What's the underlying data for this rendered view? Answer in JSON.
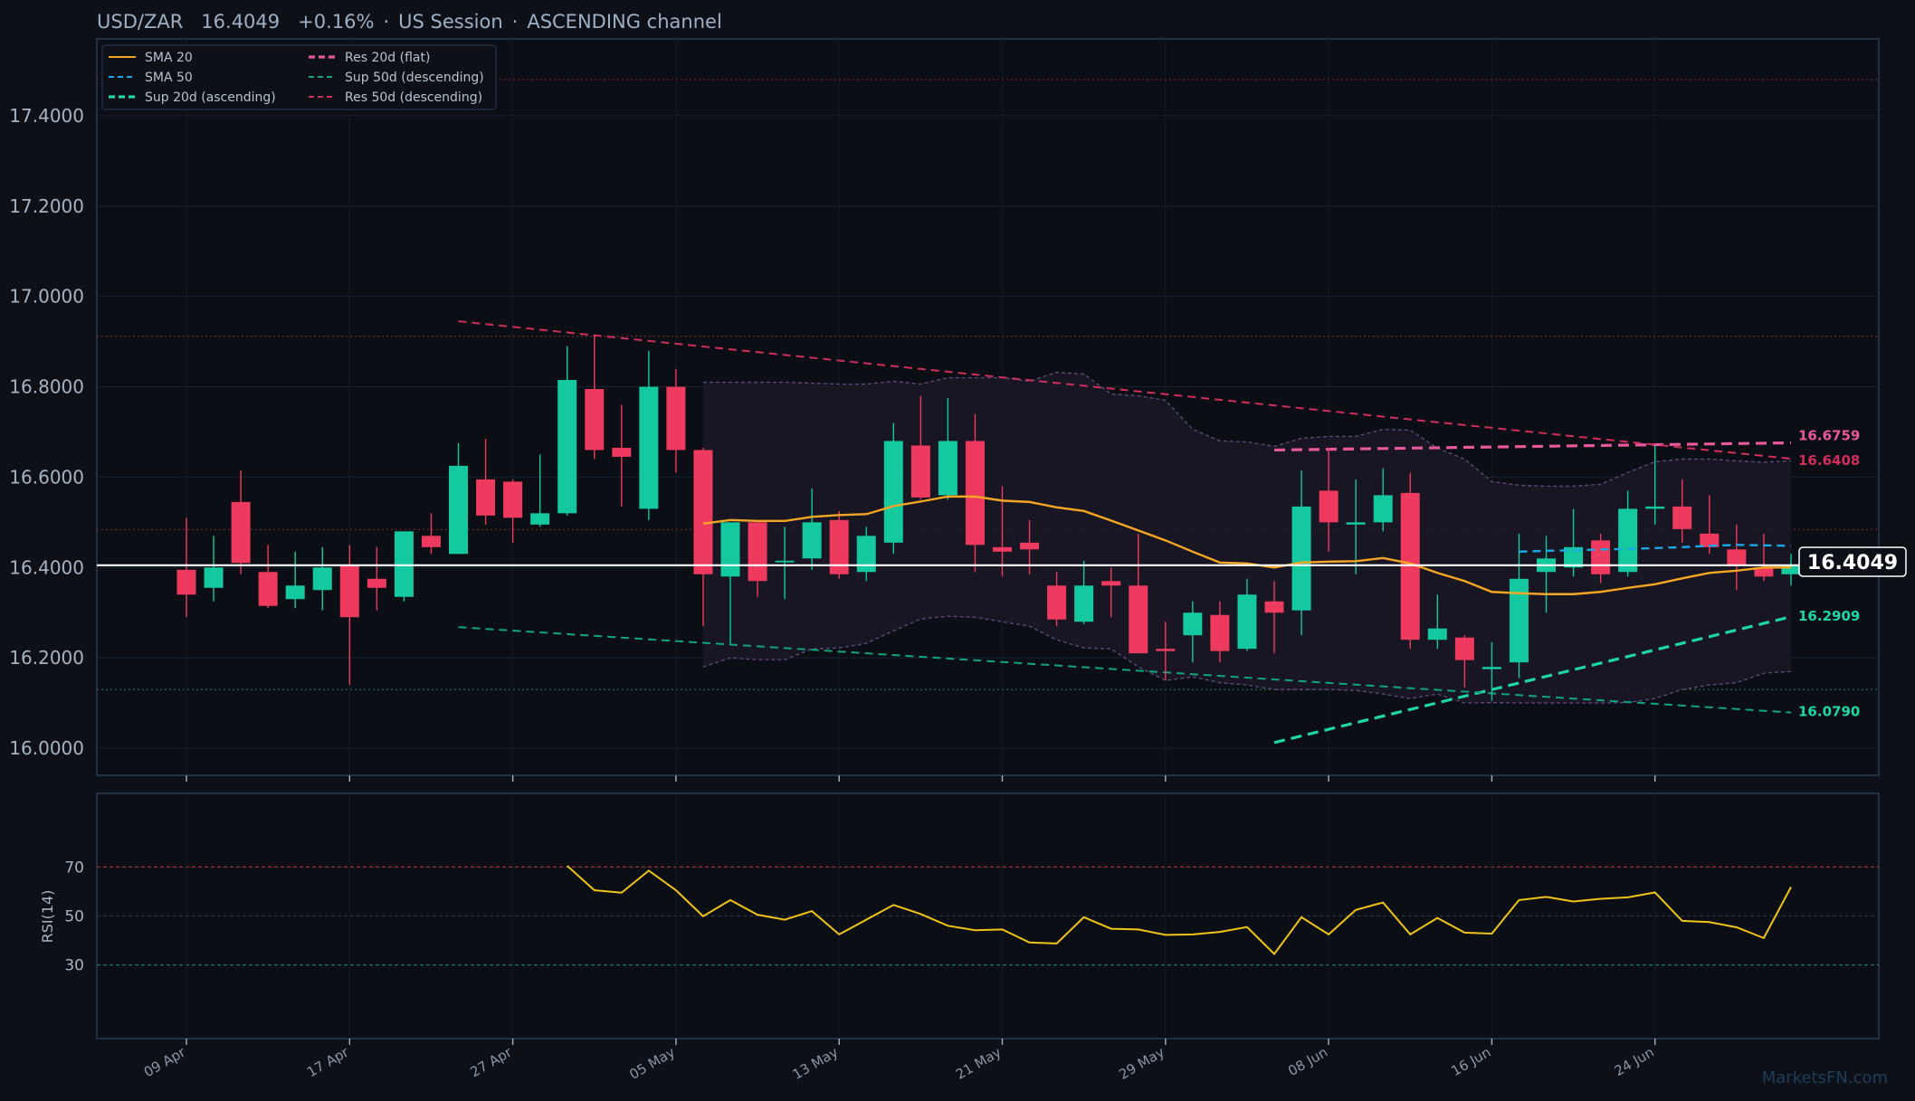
{
  "header": {
    "symbol": "USD/ZAR",
    "price": "16.4049",
    "change": "+0.16%",
    "session": "US Session",
    "channel": "ASCENDING channel"
  },
  "legend": [
    {
      "label": "SMA 20",
      "color": "#f5a623",
      "style": "solid"
    },
    {
      "label": "SMA 50",
      "color": "#1ea7e8",
      "style": "dashed"
    },
    {
      "label": "Sup 20d (ascending)",
      "color": "#1fd6a4",
      "style": "dashed-bold"
    },
    {
      "label": "Res 20d (flat)",
      "color": "#e8589a",
      "style": "dashed-bold"
    },
    {
      "label": "Sup 50d (descending)",
      "color": "#14a37f",
      "style": "dashed"
    },
    {
      "label": "Res 50d (descending)",
      "color": "#d02e5c",
      "style": "dashed"
    }
  ],
  "price_axis": {
    "ticks": [
      "16.0000",
      "16.2000",
      "16.4000",
      "16.6000",
      "16.8000",
      "17.0000",
      "17.2000",
      "17.4000"
    ],
    "ylim": [
      15.94,
      17.57
    ]
  },
  "rsi_axis": {
    "label": "RSI(14)",
    "ticks": [
      "30",
      "50",
      "70"
    ],
    "ylim": [
      0,
      100
    ]
  },
  "x_labels": [
    "09 Apr",
    "17 Apr",
    "27 Apr",
    "05 May",
    "13 May",
    "21 May",
    "29 May",
    "08 Jun",
    "16 Jun",
    "24 Jun"
  ],
  "price_tag": "16.4049",
  "level_tags": [
    {
      "text": "16.6759",
      "color": "#e8589a"
    },
    {
      "text": "16.6408",
      "color": "#d02e5c"
    },
    {
      "text": "16.2909",
      "color": "#1fd6a4"
    },
    {
      "text": "16.0790",
      "color": "#1fd6a4"
    }
  ],
  "watermark": "MarketsFN.com",
  "colors": {
    "up": "#14c8a0",
    "down": "#ee3a5e",
    "bg": "#0d1117",
    "sma20": "#f5a623",
    "rsi": "#f0c419"
  },
  "chart_data": {
    "type": "candlestick",
    "title": "USD/ZAR 16.4049 +0.16% · US Session · ASCENDING channel",
    "candles": [
      {
        "i": 0,
        "o": 16.395,
        "h": 16.51,
        "l": 16.29,
        "c": 16.34
      },
      {
        "i": 1,
        "o": 16.355,
        "h": 16.47,
        "l": 16.325,
        "c": 16.4
      },
      {
        "i": 2,
        "o": 16.545,
        "h": 16.615,
        "l": 16.385,
        "c": 16.41
      },
      {
        "i": 3,
        "o": 16.39,
        "h": 16.45,
        "l": 16.31,
        "c": 16.315
      },
      {
        "i": 4,
        "o": 16.33,
        "h": 16.435,
        "l": 16.31,
        "c": 16.36
      },
      {
        "i": 5,
        "o": 16.35,
        "h": 16.445,
        "l": 16.305,
        "c": 16.4
      },
      {
        "i": 6,
        "o": 16.405,
        "h": 16.45,
        "l": 16.14,
        "c": 16.29
      },
      {
        "i": 7,
        "o": 16.375,
        "h": 16.445,
        "l": 16.305,
        "c": 16.355
      },
      {
        "i": 8,
        "o": 16.335,
        "h": 16.48,
        "l": 16.325,
        "c": 16.48
      },
      {
        "i": 9,
        "o": 16.47,
        "h": 16.52,
        "l": 16.43,
        "c": 16.445
      },
      {
        "i": 10,
        "o": 16.43,
        "h": 16.675,
        "l": 16.43,
        "c": 16.625
      },
      {
        "i": 11,
        "o": 16.595,
        "h": 16.685,
        "l": 16.495,
        "c": 16.515
      },
      {
        "i": 12,
        "o": 16.59,
        "h": 16.595,
        "l": 16.455,
        "c": 16.51
      },
      {
        "i": 13,
        "o": 16.495,
        "h": 16.65,
        "l": 16.49,
        "c": 16.52
      },
      {
        "i": 14,
        "o": 16.52,
        "h": 16.89,
        "l": 16.515,
        "c": 16.815
      },
      {
        "i": 15,
        "o": 16.795,
        "h": 16.915,
        "l": 16.64,
        "c": 16.66
      },
      {
        "i": 16,
        "o": 16.665,
        "h": 16.76,
        "l": 16.535,
        "c": 16.645
      },
      {
        "i": 17,
        "o": 16.53,
        "h": 16.88,
        "l": 16.505,
        "c": 16.8
      },
      {
        "i": 18,
        "o": 16.8,
        "h": 16.84,
        "l": 16.61,
        "c": 16.66
      },
      {
        "i": 19,
        "o": 16.66,
        "h": 16.665,
        "l": 16.27,
        "c": 16.385
      },
      {
        "i": 20,
        "o": 16.38,
        "h": 16.5,
        "l": 16.23,
        "c": 16.5
      },
      {
        "i": 21,
        "o": 16.5,
        "h": 16.505,
        "l": 16.335,
        "c": 16.37
      },
      {
        "i": 22,
        "o": 16.415,
        "h": 16.49,
        "l": 16.33,
        "c": 16.415
      },
      {
        "i": 23,
        "o": 16.42,
        "h": 16.575,
        "l": 16.395,
        "c": 16.5
      },
      {
        "i": 24,
        "o": 16.505,
        "h": 16.525,
        "l": 16.375,
        "c": 16.385
      },
      {
        "i": 25,
        "o": 16.39,
        "h": 16.49,
        "l": 16.37,
        "c": 16.47
      },
      {
        "i": 26,
        "o": 16.455,
        "h": 16.72,
        "l": 16.43,
        "c": 16.68
      },
      {
        "i": 27,
        "o": 16.67,
        "h": 16.78,
        "l": 16.55,
        "c": 16.555
      },
      {
        "i": 28,
        "o": 16.56,
        "h": 16.775,
        "l": 16.55,
        "c": 16.68
      },
      {
        "i": 29,
        "o": 16.68,
        "h": 16.74,
        "l": 16.39,
        "c": 16.45
      },
      {
        "i": 30,
        "o": 16.445,
        "h": 16.58,
        "l": 16.38,
        "c": 16.435
      },
      {
        "i": 31,
        "o": 16.455,
        "h": 16.505,
        "l": 16.385,
        "c": 16.44
      },
      {
        "i": 32,
        "o": 16.36,
        "h": 16.39,
        "l": 16.27,
        "c": 16.285
      },
      {
        "i": 33,
        "o": 16.28,
        "h": 16.415,
        "l": 16.275,
        "c": 16.36
      },
      {
        "i": 34,
        "o": 16.37,
        "h": 16.4,
        "l": 16.29,
        "c": 16.36
      },
      {
        "i": 35,
        "o": 16.36,
        "h": 16.475,
        "l": 16.21,
        "c": 16.21
      },
      {
        "i": 36,
        "o": 16.22,
        "h": 16.28,
        "l": 16.15,
        "c": 16.215
      },
      {
        "i": 37,
        "o": 16.25,
        "h": 16.325,
        "l": 16.19,
        "c": 16.3
      },
      {
        "i": 38,
        "o": 16.295,
        "h": 16.325,
        "l": 16.19,
        "c": 16.215
      },
      {
        "i": 39,
        "o": 16.22,
        "h": 16.375,
        "l": 16.215,
        "c": 16.34
      },
      {
        "i": 40,
        "o": 16.325,
        "h": 16.37,
        "l": 16.21,
        "c": 16.3
      },
      {
        "i": 41,
        "o": 16.305,
        "h": 16.615,
        "l": 16.25,
        "c": 16.535
      },
      {
        "i": 42,
        "o": 16.57,
        "h": 16.665,
        "l": 16.435,
        "c": 16.5
      },
      {
        "i": 43,
        "o": 16.495,
        "h": 16.595,
        "l": 16.385,
        "c": 16.5
      },
      {
        "i": 44,
        "o": 16.5,
        "h": 16.62,
        "l": 16.48,
        "c": 16.56
      },
      {
        "i": 45,
        "o": 16.565,
        "h": 16.61,
        "l": 16.22,
        "c": 16.24
      },
      {
        "i": 46,
        "o": 16.24,
        "h": 16.34,
        "l": 16.22,
        "c": 16.265
      },
      {
        "i": 47,
        "o": 16.245,
        "h": 16.25,
        "l": 16.135,
        "c": 16.195
      },
      {
        "i": 48,
        "o": 16.175,
        "h": 16.235,
        "l": 16.105,
        "c": 16.18
      },
      {
        "i": 49,
        "o": 16.19,
        "h": 16.475,
        "l": 16.155,
        "c": 16.375
      },
      {
        "i": 50,
        "o": 16.39,
        "h": 16.47,
        "l": 16.3,
        "c": 16.42
      },
      {
        "i": 51,
        "o": 16.4,
        "h": 16.53,
        "l": 16.38,
        "c": 16.445
      },
      {
        "i": 52,
        "o": 16.46,
        "h": 16.475,
        "l": 16.365,
        "c": 16.385
      },
      {
        "i": 53,
        "o": 16.39,
        "h": 16.57,
        "l": 16.38,
        "c": 16.53
      },
      {
        "i": 54,
        "o": 16.53,
        "h": 16.67,
        "l": 16.495,
        "c": 16.535
      },
      {
        "i": 55,
        "o": 16.535,
        "h": 16.595,
        "l": 16.455,
        "c": 16.485
      },
      {
        "i": 56,
        "o": 16.475,
        "h": 16.56,
        "l": 16.43,
        "c": 16.445
      },
      {
        "i": 57,
        "o": 16.44,
        "h": 16.495,
        "l": 16.35,
        "c": 16.405
      },
      {
        "i": 58,
        "o": 16.4,
        "h": 16.475,
        "l": 16.37,
        "c": 16.38
      },
      {
        "i": 59,
        "o": 16.385,
        "h": 16.43,
        "l": 16.36,
        "c": 16.4049
      }
    ],
    "sma20": {
      "start": 19,
      "values": [
        16.497,
        16.505,
        16.503,
        16.503,
        16.512,
        16.516,
        16.518,
        16.536,
        16.546,
        16.557,
        16.557,
        16.548,
        16.545,
        16.533,
        16.525,
        16.504,
        16.482,
        16.46,
        16.435,
        16.411,
        16.409,
        16.4,
        16.411,
        16.413,
        16.414,
        16.421,
        16.409,
        16.388,
        16.37,
        16.346,
        16.343,
        16.341,
        16.341,
        16.346,
        16.355,
        16.363,
        16.376,
        16.388,
        16.393,
        16.4,
        16.4
      ]
    },
    "sma50": {
      "start": 49,
      "values": [
        16.435,
        16.437,
        16.438,
        16.44,
        16.441,
        16.443,
        16.445,
        16.448,
        16.45,
        16.449,
        16.448
      ]
    },
    "bands": {
      "start": 19,
      "upper": [
        16.81,
        16.81,
        16.81,
        16.81,
        16.808,
        16.806,
        16.806,
        16.812,
        16.806,
        16.82,
        16.82,
        16.82,
        16.812,
        16.832,
        16.828,
        16.784,
        16.78,
        16.77,
        16.706,
        16.68,
        16.678,
        16.668,
        16.686,
        16.69,
        16.69,
        16.706,
        16.704,
        16.664,
        16.64,
        16.59,
        16.582,
        16.58,
        16.58,
        16.584,
        16.61,
        16.634,
        16.64,
        16.64,
        16.636,
        16.633,
        16.636
      ],
      "lower": [
        16.18,
        16.2,
        16.196,
        16.196,
        16.22,
        16.222,
        16.232,
        16.26,
        16.286,
        16.292,
        16.29,
        16.28,
        16.27,
        16.24,
        16.222,
        16.22,
        16.18,
        16.15,
        16.158,
        16.145,
        16.14,
        16.13,
        16.13,
        16.13,
        16.128,
        16.12,
        16.11,
        16.12,
        16.1,
        16.101,
        16.1,
        16.1,
        16.1,
        16.1,
        16.101,
        16.11,
        16.13,
        16.14,
        16.145,
        16.166,
        16.17
      ]
    },
    "lines": [
      {
        "name": "Sup 20d (ascending)",
        "from": [
          40,
          16.0125
        ],
        "to": [
          59,
          16.2909
        ]
      },
      {
        "name": "Res 20d (flat)",
        "from": [
          40,
          16.66
        ],
        "to": [
          59,
          16.6759
        ]
      },
      {
        "name": "Sup 50d (descending)",
        "from": [
          10,
          16.268
        ],
        "to": [
          59,
          16.079
        ]
      },
      {
        "name": "Res 50d (descending)",
        "from": [
          10,
          16.945
        ],
        "to": [
          59,
          16.6408
        ]
      }
    ],
    "sma50_start_index": 49,
    "ref_levels": [
      17.48,
      16.912,
      16.484,
      16.13
    ],
    "current_price": 16.4049,
    "rsi": {
      "start": 14,
      "values": [
        70.5,
        60.5,
        59.5,
        68.5,
        60.5,
        49.9,
        56.5,
        50.5,
        48.5,
        52.0,
        42.5,
        48.5,
        54.5,
        50.8,
        46.0,
        44.2,
        44.5,
        39.2,
        38.8,
        49.5,
        44.8,
        44.5,
        42.3,
        42.5,
        43.5,
        45.5,
        34.5,
        49.5,
        42.5,
        52.5,
        55.5,
        42.5,
        49.2,
        43.2,
        42.8,
        56.5,
        57.8,
        55.9,
        57.0,
        57.6,
        59.6,
        48.0,
        47.5,
        45.4,
        41.0,
        61.8
      ]
    },
    "rsi_levels": [
      70,
      50,
      30
    ],
    "x_tick_indices": [
      0,
      6,
      12,
      18,
      24,
      30,
      36,
      42,
      48,
      54
    ]
  }
}
